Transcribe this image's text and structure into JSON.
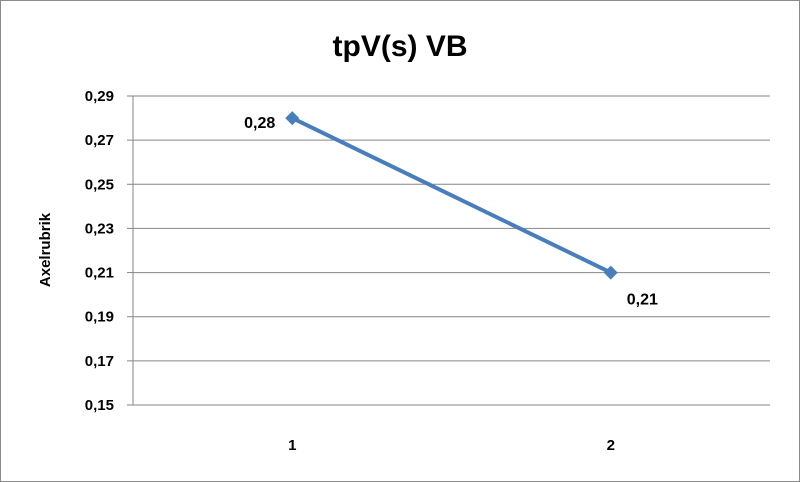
{
  "chart_data": {
    "type": "line",
    "title": "tpV(s) VB",
    "xlabel": "",
    "ylabel": "Axelrubrik",
    "categories": [
      "1",
      "2"
    ],
    "series": [
      {
        "values": [
          0.28,
          0.21
        ],
        "color": "#4a7ebb",
        "labels": [
          "0,28",
          "0,21"
        ]
      }
    ],
    "ylim": [
      0.15,
      0.29
    ],
    "yticks": [
      0.15,
      0.17,
      0.19,
      0.21,
      0.23,
      0.25,
      0.27,
      0.29
    ],
    "ytick_labels": [
      "0,15",
      "0,17",
      "0,19",
      "0,21",
      "0,23",
      "0,25",
      "0,27",
      "0,29"
    ],
    "grid": true,
    "legend": "none",
    "marker": "diamond"
  }
}
